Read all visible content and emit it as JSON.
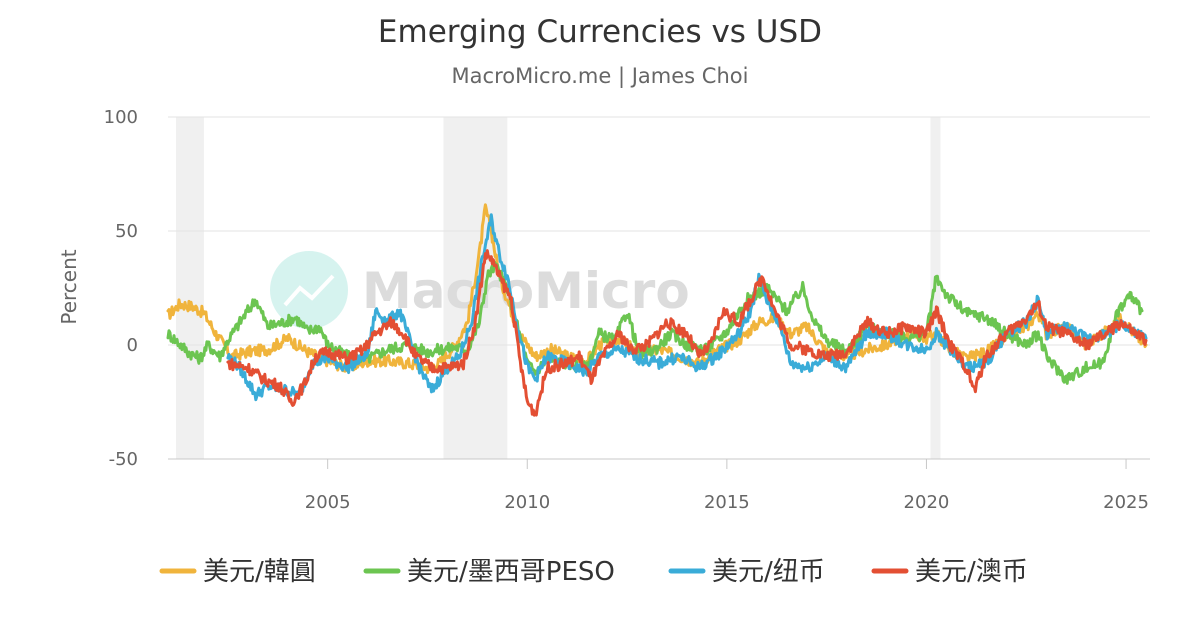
{
  "chart_data": {
    "type": "line",
    "title": "Emerging Currencies vs USD",
    "subtitle": "MacroMicro.me | James Choi",
    "ylabel": "Percent",
    "xlabel": "",
    "ylim": [
      -50,
      100
    ],
    "xlim": [
      2001.0,
      2025.6
    ],
    "yticks": [
      -50,
      0,
      50,
      100
    ],
    "xticks": [
      2005,
      2010,
      2015,
      2020,
      2025
    ],
    "grid": true,
    "legend_position": "bottom",
    "watermark": "MacroMicro",
    "shaded_periods": [
      [
        2001.2,
        2001.9
      ],
      [
        2007.9,
        2009.5
      ],
      [
        2020.1,
        2020.35
      ]
    ],
    "series": [
      {
        "name": "美元/韓圓",
        "color": "#f0b43c",
        "points": [
          [
            2001.0,
            13
          ],
          [
            2001.3,
            18
          ],
          [
            2001.6,
            17
          ],
          [
            2001.9,
            14
          ],
          [
            2002.2,
            5
          ],
          [
            2002.6,
            -5
          ],
          [
            2003.0,
            -3
          ],
          [
            2003.5,
            -2
          ],
          [
            2004.0,
            3
          ],
          [
            2004.5,
            -3
          ],
          [
            2005.0,
            -7
          ],
          [
            2005.5,
            -10
          ],
          [
            2006.0,
            -7
          ],
          [
            2006.5,
            -7
          ],
          [
            2007.0,
            -8
          ],
          [
            2007.5,
            -10
          ],
          [
            2007.8,
            -8
          ],
          [
            2008.2,
            0
          ],
          [
            2008.5,
            10
          ],
          [
            2008.8,
            40
          ],
          [
            2008.95,
            60
          ],
          [
            2009.1,
            50
          ],
          [
            2009.3,
            30
          ],
          [
            2009.6,
            15
          ],
          [
            2009.8,
            5
          ],
          [
            2010.2,
            -5
          ],
          [
            2010.6,
            -2
          ],
          [
            2011.0,
            -5
          ],
          [
            2011.5,
            -7
          ],
          [
            2011.8,
            0
          ],
          [
            2012.3,
            3
          ],
          [
            2012.8,
            -4
          ],
          [
            2013.3,
            -2
          ],
          [
            2013.8,
            -5
          ],
          [
            2014.3,
            -8
          ],
          [
            2014.8,
            -2
          ],
          [
            2015.3,
            2
          ],
          [
            2015.8,
            10
          ],
          [
            2016.2,
            12
          ],
          [
            2016.6,
            5
          ],
          [
            2017.0,
            8
          ],
          [
            2017.5,
            -3
          ],
          [
            2018.0,
            -5
          ],
          [
            2018.5,
            -2
          ],
          [
            2019.0,
            0
          ],
          [
            2019.5,
            5
          ],
          [
            2020.0,
            3
          ],
          [
            2020.25,
            5
          ],
          [
            2020.6,
            -2
          ],
          [
            2021.0,
            -6
          ],
          [
            2021.5,
            -3
          ],
          [
            2022.0,
            3
          ],
          [
            2022.5,
            8
          ],
          [
            2022.8,
            14
          ],
          [
            2023.0,
            5
          ],
          [
            2023.5,
            8
          ],
          [
            2024.0,
            0
          ],
          [
            2024.5,
            6
          ],
          [
            2024.9,
            12
          ],
          [
            2025.2,
            5
          ],
          [
            2025.5,
            0
          ]
        ]
      },
      {
        "name": "美元/墨西哥PESO",
        "color": "#6cc551",
        "points": [
          [
            2001.0,
            5
          ],
          [
            2001.2,
            2
          ],
          [
            2001.5,
            -3
          ],
          [
            2001.8,
            -6
          ],
          [
            2002.0,
            0
          ],
          [
            2002.3,
            -5
          ],
          [
            2002.5,
            2
          ],
          [
            2002.8,
            10
          ],
          [
            2003.2,
            20
          ],
          [
            2003.5,
            8
          ],
          [
            2003.9,
            10
          ],
          [
            2004.2,
            12
          ],
          [
            2004.5,
            6
          ],
          [
            2004.8,
            8
          ],
          [
            2005.0,
            0
          ],
          [
            2005.5,
            -5
          ],
          [
            2006.0,
            -6
          ],
          [
            2006.5,
            -2
          ],
          [
            2007.0,
            0
          ],
          [
            2007.5,
            -3
          ],
          [
            2007.8,
            -2
          ],
          [
            2008.2,
            -1
          ],
          [
            2008.5,
            -2
          ],
          [
            2008.8,
            10
          ],
          [
            2009.0,
            30
          ],
          [
            2009.2,
            35
          ],
          [
            2009.5,
            25
          ],
          [
            2009.8,
            5
          ],
          [
            2010.0,
            -8
          ],
          [
            2010.2,
            -12
          ],
          [
            2010.5,
            -6
          ],
          [
            2011.0,
            -8
          ],
          [
            2011.5,
            -10
          ],
          [
            2011.8,
            5
          ],
          [
            2012.2,
            2
          ],
          [
            2012.5,
            15
          ],
          [
            2012.8,
            -4
          ],
          [
            2013.2,
            -2
          ],
          [
            2013.6,
            5
          ],
          [
            2014.0,
            0
          ],
          [
            2014.5,
            -2
          ],
          [
            2015.0,
            6
          ],
          [
            2015.5,
            20
          ],
          [
            2016.0,
            25
          ],
          [
            2016.5,
            15
          ],
          [
            2016.9,
            25
          ],
          [
            2017.2,
            10
          ],
          [
            2017.5,
            2
          ],
          [
            2018.0,
            -3
          ],
          [
            2018.5,
            8
          ],
          [
            2019.0,
            5
          ],
          [
            2019.5,
            3
          ],
          [
            2020.0,
            5
          ],
          [
            2020.25,
            30
          ],
          [
            2020.5,
            22
          ],
          [
            2021.0,
            14
          ],
          [
            2021.5,
            12
          ],
          [
            2022.0,
            5
          ],
          [
            2022.5,
            0
          ],
          [
            2022.8,
            5
          ],
          [
            2023.0,
            -5
          ],
          [
            2023.5,
            -15
          ],
          [
            2024.0,
            -10
          ],
          [
            2024.4,
            -8
          ],
          [
            2024.8,
            15
          ],
          [
            2025.1,
            22
          ],
          [
            2025.4,
            15
          ]
        ]
      },
      {
        "name": "美元/纽币",
        "color": "#3aacd8",
        "points": [
          [
            2002.5,
            -5
          ],
          [
            2002.8,
            -10
          ],
          [
            2003.2,
            -22
          ],
          [
            2003.5,
            -18
          ],
          [
            2004.0,
            -20
          ],
          [
            2004.3,
            -22
          ],
          [
            2004.6,
            -8
          ],
          [
            2005.0,
            -6
          ],
          [
            2005.5,
            -10
          ],
          [
            2006.0,
            -4
          ],
          [
            2006.2,
            15
          ],
          [
            2006.5,
            10
          ],
          [
            2006.8,
            15
          ],
          [
            2007.0,
            5
          ],
          [
            2007.3,
            -10
          ],
          [
            2007.6,
            -20
          ],
          [
            2008.0,
            -10
          ],
          [
            2008.3,
            -5
          ],
          [
            2008.6,
            10
          ],
          [
            2008.9,
            40
          ],
          [
            2009.1,
            55
          ],
          [
            2009.3,
            40
          ],
          [
            2009.5,
            30
          ],
          [
            2009.8,
            5
          ],
          [
            2010.0,
            -10
          ],
          [
            2010.2,
            -15
          ],
          [
            2010.5,
            -5
          ],
          [
            2011.0,
            -8
          ],
          [
            2011.5,
            -12
          ],
          [
            2011.8,
            -5
          ],
          [
            2012.3,
            -2
          ],
          [
            2012.8,
            -6
          ],
          [
            2013.3,
            -8
          ],
          [
            2013.8,
            -5
          ],
          [
            2014.3,
            -10
          ],
          [
            2014.8,
            -4
          ],
          [
            2015.3,
            5
          ],
          [
            2015.6,
            15
          ],
          [
            2015.8,
            30
          ],
          [
            2016.0,
            20
          ],
          [
            2016.3,
            10
          ],
          [
            2016.6,
            -8
          ],
          [
            2017.0,
            -10
          ],
          [
            2017.5,
            -5
          ],
          [
            2018.0,
            -10
          ],
          [
            2018.5,
            5
          ],
          [
            2019.0,
            5
          ],
          [
            2019.5,
            0
          ],
          [
            2020.0,
            -2
          ],
          [
            2020.25,
            5
          ],
          [
            2020.5,
            0
          ],
          [
            2021.0,
            -10
          ],
          [
            2021.5,
            -8
          ],
          [
            2022.0,
            5
          ],
          [
            2022.5,
            10
          ],
          [
            2022.8,
            20
          ],
          [
            2023.0,
            5
          ],
          [
            2023.5,
            8
          ],
          [
            2024.0,
            3
          ],
          [
            2024.5,
            5
          ],
          [
            2024.9,
            10
          ],
          [
            2025.2,
            5
          ],
          [
            2025.5,
            3
          ]
        ]
      },
      {
        "name": "美元/澳币",
        "color": "#e34f33",
        "points": [
          [
            2002.5,
            -8
          ],
          [
            2003.0,
            -10
          ],
          [
            2003.4,
            -15
          ],
          [
            2003.8,
            -18
          ],
          [
            2004.1,
            -25
          ],
          [
            2004.4,
            -18
          ],
          [
            2004.7,
            -5
          ],
          [
            2005.0,
            -3
          ],
          [
            2005.5,
            -6
          ],
          [
            2005.9,
            -2
          ],
          [
            2006.2,
            5
          ],
          [
            2006.6,
            10
          ],
          [
            2006.9,
            5
          ],
          [
            2007.2,
            -5
          ],
          [
            2007.6,
            -10
          ],
          [
            2008.0,
            -10
          ],
          [
            2008.4,
            -8
          ],
          [
            2008.7,
            10
          ],
          [
            2008.95,
            40
          ],
          [
            2009.1,
            38
          ],
          [
            2009.3,
            30
          ],
          [
            2009.6,
            20
          ],
          [
            2009.8,
            -5
          ],
          [
            2010.0,
            -25
          ],
          [
            2010.2,
            -30
          ],
          [
            2010.5,
            -10
          ],
          [
            2011.0,
            -8
          ],
          [
            2011.3,
            -5
          ],
          [
            2011.6,
            -15
          ],
          [
            2011.9,
            -5
          ],
          [
            2012.3,
            5
          ],
          [
            2012.6,
            -2
          ],
          [
            2013.0,
            0
          ],
          [
            2013.5,
            10
          ],
          [
            2014.0,
            5
          ],
          [
            2014.3,
            -5
          ],
          [
            2014.6,
            0
          ],
          [
            2014.9,
            15
          ],
          [
            2015.3,
            10
          ],
          [
            2015.6,
            20
          ],
          [
            2015.9,
            30
          ],
          [
            2016.2,
            15
          ],
          [
            2016.6,
            0
          ],
          [
            2017.0,
            -2
          ],
          [
            2017.5,
            -5
          ],
          [
            2018.0,
            -3
          ],
          [
            2018.5,
            10
          ],
          [
            2019.0,
            5
          ],
          [
            2019.5,
            8
          ],
          [
            2020.0,
            5
          ],
          [
            2020.25,
            15
          ],
          [
            2020.6,
            0
          ],
          [
            2021.0,
            -10
          ],
          [
            2021.2,
            -20
          ],
          [
            2021.5,
            -5
          ],
          [
            2022.0,
            5
          ],
          [
            2022.5,
            12
          ],
          [
            2022.8,
            18
          ],
          [
            2023.0,
            8
          ],
          [
            2023.5,
            5
          ],
          [
            2024.0,
            0
          ],
          [
            2024.5,
            5
          ],
          [
            2024.9,
            10
          ],
          [
            2025.2,
            5
          ],
          [
            2025.5,
            2
          ]
        ]
      }
    ]
  }
}
